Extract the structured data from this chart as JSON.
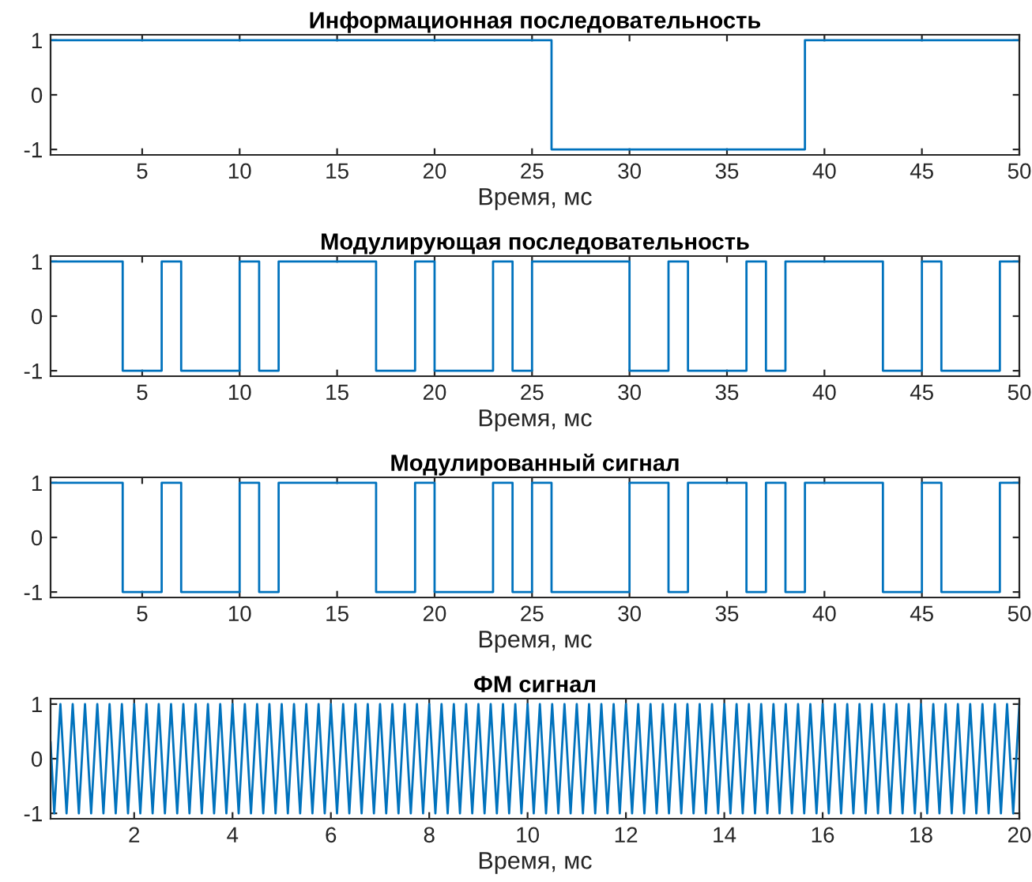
{
  "chart_data": [
    {
      "type": "step",
      "title": "Информационная последовательность",
      "xlabel": "Время, мс",
      "xlim": [
        0.3,
        50
      ],
      "ylim": [
        -1.1,
        1.1
      ],
      "xticks": [
        5,
        10,
        15,
        20,
        25,
        30,
        35,
        40,
        45,
        50
      ],
      "yticks": [
        -1,
        0,
        1
      ],
      "grid": false,
      "legend": false,
      "series": [
        {
          "color": "#0072bd",
          "x": [
            0.3,
            26,
            39,
            50
          ],
          "values": [
            1,
            -1,
            1,
            1
          ]
        }
      ]
    },
    {
      "type": "step",
      "title": "Модулирующая последовательность",
      "xlabel": "Время, мс",
      "xlim": [
        0.3,
        50
      ],
      "ylim": [
        -1.1,
        1.1
      ],
      "xticks": [
        5,
        10,
        15,
        20,
        25,
        30,
        35,
        40,
        45,
        50
      ],
      "yticks": [
        -1,
        0,
        1
      ],
      "grid": false,
      "legend": false,
      "series": [
        {
          "color": "#0072bd",
          "x": [
            0.3,
            4,
            6,
            7,
            10,
            11,
            12,
            17,
            19,
            20,
            23,
            24,
            25,
            30,
            32,
            33,
            36,
            37,
            38,
            43,
            45,
            46,
            49,
            50
          ],
          "values": [
            1,
            -1,
            1,
            -1,
            1,
            -1,
            1,
            -1,
            1,
            -1,
            1,
            -1,
            1,
            -1,
            1,
            -1,
            1,
            -1,
            1,
            -1,
            1,
            -1,
            1,
            1
          ]
        }
      ]
    },
    {
      "type": "step",
      "title": "Модулированный сигнал",
      "xlabel": "Время, мс",
      "xlim": [
        0.3,
        50
      ],
      "ylim": [
        -1.1,
        1.1
      ],
      "xticks": [
        5,
        10,
        15,
        20,
        25,
        30,
        35,
        40,
        45,
        50
      ],
      "yticks": [
        -1,
        0,
        1
      ],
      "grid": false,
      "legend": false,
      "series": [
        {
          "color": "#0072bd",
          "x": [
            0.3,
            4,
            6,
            7,
            10,
            11,
            12,
            17,
            19,
            20,
            23,
            24,
            25,
            26,
            30,
            32,
            33,
            36,
            37,
            38,
            39,
            43,
            45,
            46,
            49,
            50
          ],
          "values": [
            1,
            -1,
            1,
            -1,
            1,
            -1,
            1,
            -1,
            1,
            -1,
            1,
            -1,
            1,
            -1,
            1,
            -1,
            1,
            -1,
            1,
            -1,
            1,
            -1,
            1,
            -1,
            1,
            1
          ]
        }
      ]
    },
    {
      "type": "line",
      "title": "ФМ сигнал",
      "xlabel": "Время, мс",
      "xlim": [
        0.3,
        20
      ],
      "ylim": [
        -1.1,
        1.1
      ],
      "xticks": [
        2,
        4,
        6,
        8,
        10,
        12,
        14,
        16,
        18,
        20
      ],
      "yticks": [
        -1,
        0,
        1
      ],
      "grid": false,
      "legend": false,
      "series": [
        {
          "color": "#0072bd",
          "x": [
            0.3,
            0.375,
            0.5,
            0.625,
            0.75,
            0.875,
            1,
            1.125,
            1.25,
            1.375,
            1.5,
            1.625,
            1.75,
            1.875,
            2,
            2.125,
            2.25,
            2.375,
            2.5,
            2.625,
            2.75,
            2.875,
            3,
            3.125,
            3.25,
            3.375,
            3.5,
            3.625,
            3.75,
            3.875,
            4,
            4.125,
            4.25,
            4.375,
            4.5,
            4.625,
            4.75,
            4.875,
            5,
            5.125,
            5.25,
            5.375,
            5.5,
            5.625,
            5.75,
            5.875,
            6,
            6.125,
            6.25,
            6.375,
            6.5,
            6.625,
            6.75,
            6.875,
            7,
            7.125,
            7.25,
            7.375,
            7.5,
            7.625,
            7.75,
            7.875,
            8,
            8.125,
            8.25,
            8.375,
            8.5,
            8.625,
            8.75,
            8.875,
            9,
            9.125,
            9.25,
            9.375,
            9.5,
            9.625,
            9.75,
            9.875,
            10,
            10.125,
            10.25,
            10.375,
            10.5,
            10.625,
            10.75,
            10.875,
            11,
            11.125,
            11.25,
            11.375,
            11.5,
            11.625,
            11.75,
            11.875,
            12,
            12.125,
            12.25,
            12.375,
            12.5,
            12.625,
            12.75,
            12.875,
            13,
            13.125,
            13.25,
            13.375,
            13.5,
            13.625,
            13.75,
            13.875,
            14,
            14.125,
            14.25,
            14.375,
            14.5,
            14.625,
            14.75,
            14.875,
            15,
            15.125,
            15.25,
            15.375,
            15.5,
            15.625,
            15.75,
            15.875,
            16,
            16.125,
            16.25,
            16.375,
            16.5,
            16.625,
            16.75,
            16.875,
            17,
            17.125,
            17.25,
            17.375,
            17.5,
            17.625,
            17.75,
            17.875,
            18,
            18.125,
            18.25,
            18.375,
            18.5,
            18.625,
            18.75,
            18.875,
            19,
            19.125,
            19.25,
            19.375,
            19.5,
            19.625,
            19.75,
            19.875,
            20
          ],
          "values": [
            0.3,
            -1,
            1,
            -1,
            1,
            -1,
            1,
            -1,
            1,
            -1,
            1,
            -1,
            1,
            -1,
            1,
            -1,
            1,
            -1,
            1,
            -1,
            1,
            -1,
            1,
            -1,
            1,
            -1,
            1,
            -1,
            1,
            -1,
            1,
            -1,
            1,
            -1,
            1,
            -1,
            1,
            -1,
            1,
            -1,
            1,
            -1,
            1,
            -1,
            1,
            -1,
            1,
            -1,
            1,
            -1,
            1,
            -1,
            1,
            -1,
            1,
            -1,
            1,
            -1,
            1,
            -1,
            1,
            -1,
            1,
            -1,
            1,
            -1,
            1,
            -1,
            1,
            -1,
            1,
            -1,
            1,
            -1,
            1,
            -1,
            1,
            -1,
            1,
            -1,
            1,
            -1,
            1,
            -1,
            1,
            -1,
            1,
            -1,
            1,
            -1,
            1,
            -1,
            1,
            -1,
            1,
            -1,
            1,
            -1,
            1,
            -1,
            1,
            -1,
            1,
            -1,
            1,
            -1,
            1,
            -1,
            1,
            -1,
            1,
            -1,
            1,
            -1,
            1,
            -1,
            1,
            -1,
            1,
            -1,
            1,
            -1,
            1,
            -1,
            1,
            -1,
            1,
            -1,
            1,
            -1,
            1,
            -1,
            1,
            -1,
            1,
            -1,
            1,
            -1,
            1,
            -1,
            1,
            -1,
            1,
            -1,
            1,
            -1,
            1,
            -1,
            1,
            -1,
            1,
            -1,
            1,
            -1,
            1,
            -1,
            1,
            -1,
            1
          ]
        }
      ]
    }
  ]
}
